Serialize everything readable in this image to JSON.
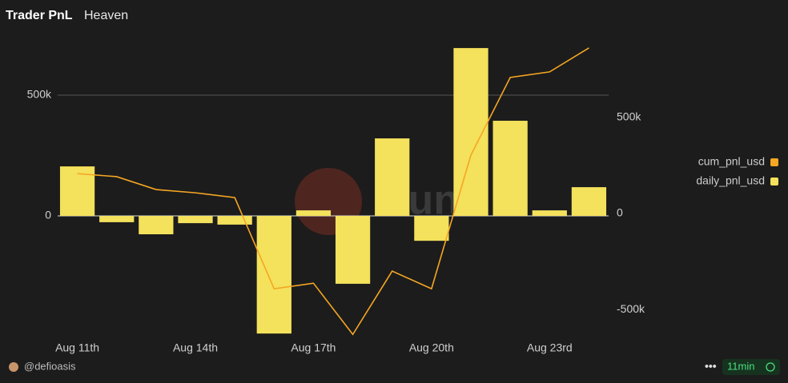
{
  "chart_data": {
    "type": "bar_line",
    "title": "Trader PnL",
    "subtitle": "Heaven",
    "categories": [
      "Aug 11th",
      null,
      null,
      "Aug 14th",
      null,
      null,
      "Aug 17th",
      null,
      null,
      "Aug 20th",
      null,
      null,
      "Aug 23rd",
      null
    ],
    "series": [
      {
        "name": "cum_pnl_usd",
        "color": "#f5a623",
        "axis": "y2",
        "type": "line",
        "values": [
          208000,
          192000,
          125000,
          108000,
          83000,
          -392000,
          -363000,
          -630000,
          -300000,
          -392000,
          304000,
          709000,
          738000,
          863000
        ]
      },
      {
        "name": "daily_pnl_usd",
        "color": "#f4e15c",
        "type": "bar",
        "values": [
          205000,
          -26000,
          -76000,
          -30000,
          -36000,
          -487000,
          23000,
          -281000,
          321000,
          -103000,
          695000,
          394000,
          23000,
          119000
        ]
      }
    ],
    "ylim": [
      -513000,
      745000
    ],
    "yticks": [
      0,
      {
        "value": 500000,
        "label": "500k"
      }
    ],
    "y2lim": [
      -658000,
      925000
    ],
    "y2ticks": [
      {
        "value": -500000,
        "label": "-500k"
      },
      0,
      {
        "value": 500000,
        "label": "500k"
      }
    ],
    "grid": true,
    "legend": "right",
    "watermark": "Dune",
    "author": "@defioasis",
    "age": "11min"
  }
}
